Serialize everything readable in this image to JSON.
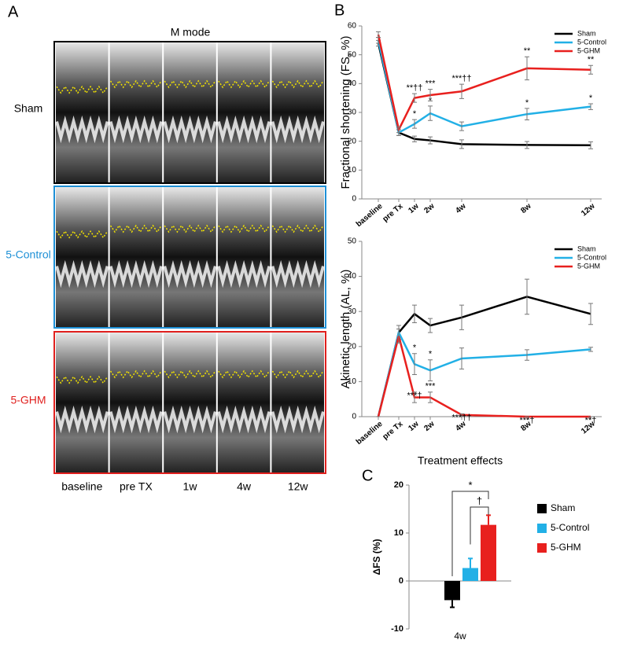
{
  "figure": {
    "panel_a": {
      "label": "A",
      "title": "M mode",
      "rows": [
        "Sham",
        "5-Control",
        "5-GHM"
      ],
      "row_colors": [
        "#000000",
        "#1e90d6",
        "#e0201e"
      ],
      "columns": [
        "baseline",
        "pre TX",
        "1w",
        "4w",
        "12w"
      ]
    }
  },
  "chart_data": [
    {
      "type": "line",
      "panel_label": "B",
      "y_label": "Fractional shortening (FS, %)",
      "categories": [
        "baseline",
        "pre Tx",
        "1w",
        "2w",
        "4w",
        "8w",
        "12w"
      ],
      "ylim": [
        0,
        60
      ],
      "yticks": [
        0,
        10,
        20,
        30,
        40,
        50,
        60
      ],
      "legend": "top-right",
      "series": [
        {
          "name": "Sham",
          "color": "#000000",
          "values": [
            54,
            23,
            20.8,
            20.3,
            19,
            18.7,
            18.6
          ],
          "errors": [
            1,
            1,
            1,
            1.2,
            1.5,
            1.2,
            1.2
          ],
          "annotations": [
            null,
            null,
            null,
            null,
            null,
            null,
            null
          ]
        },
        {
          "name": "5-Control",
          "color": "#22b0e6",
          "values": [
            55,
            23,
            26,
            29.7,
            25.2,
            29.4,
            32
          ],
          "errors": [
            1,
            1,
            1.5,
            2.5,
            1.5,
            2,
            1
          ],
          "annotations": [
            null,
            null,
            "*",
            "*",
            null,
            "*",
            "*"
          ]
        },
        {
          "name": "5-GHM",
          "color": "#e8201e",
          "values": [
            57,
            24,
            35,
            36,
            37.3,
            45.3,
            44.8
          ],
          "errors": [
            1,
            1,
            1.5,
            2,
            2.5,
            4,
            1.5
          ],
          "annotations": [
            null,
            null,
            "**††",
            "***",
            "***††",
            "**",
            "**"
          ]
        }
      ]
    },
    {
      "type": "line",
      "y_label": "Akinetic length (AL, %)",
      "categories": [
        "baseline",
        "pre Tx",
        "1w",
        "2w",
        "4w",
        "8w",
        "12w"
      ],
      "ylim": [
        0,
        50
      ],
      "yticks": [
        0,
        10,
        20,
        30,
        40,
        50
      ],
      "legend": "top-right",
      "series": [
        {
          "name": "Sham",
          "color": "#000000",
          "values": [
            0,
            24,
            29.3,
            26,
            28.3,
            34.2,
            29.3
          ],
          "errors": [
            0,
            2,
            2.5,
            2,
            3.5,
            5,
            3
          ],
          "annotations": [
            null,
            null,
            null,
            null,
            null,
            null,
            null
          ]
        },
        {
          "name": "5-Control",
          "color": "#22b0e6",
          "values": [
            0,
            24,
            15,
            13.2,
            16.6,
            17.6,
            19.2
          ],
          "errors": [
            0,
            2,
            3,
            3,
            3,
            1.5,
            0.6
          ],
          "annotations": [
            null,
            null,
            "*",
            "*",
            null,
            null,
            null
          ]
        },
        {
          "name": "5-GHM",
          "color": "#e8201e",
          "values": [
            0,
            23,
            5.5,
            5.5,
            0.5,
            0,
            0
          ],
          "errors": [
            0,
            2,
            1.5,
            1.5,
            0.3,
            0,
            0
          ],
          "annotations": [
            null,
            null,
            "***†",
            "***",
            "***††",
            "***†",
            "**†"
          ]
        }
      ]
    },
    {
      "type": "bar",
      "panel_label": "C",
      "title": "Treatment effects",
      "y_label": "ΔFS (%)",
      "categories": [
        "4w"
      ],
      "ylim": [
        -10,
        20
      ],
      "yticks": [
        -10,
        0,
        10,
        20
      ],
      "legend": "right",
      "series": [
        {
          "name": "Sham",
          "color": "#000000",
          "values": [
            -4
          ],
          "errors": [
            1.5
          ]
        },
        {
          "name": "5-Control",
          "color": "#22b0e6",
          "values": [
            2.7
          ],
          "errors": [
            2
          ]
        },
        {
          "name": "5-GHM",
          "color": "#e8201e",
          "values": [
            11.7
          ],
          "errors": [
            2
          ]
        }
      ],
      "comparisons": [
        {
          "from": "Sham",
          "to": "5-GHM",
          "label": "*"
        },
        {
          "from": "5-Control",
          "to": "5-GHM",
          "label": "†"
        }
      ]
    }
  ]
}
